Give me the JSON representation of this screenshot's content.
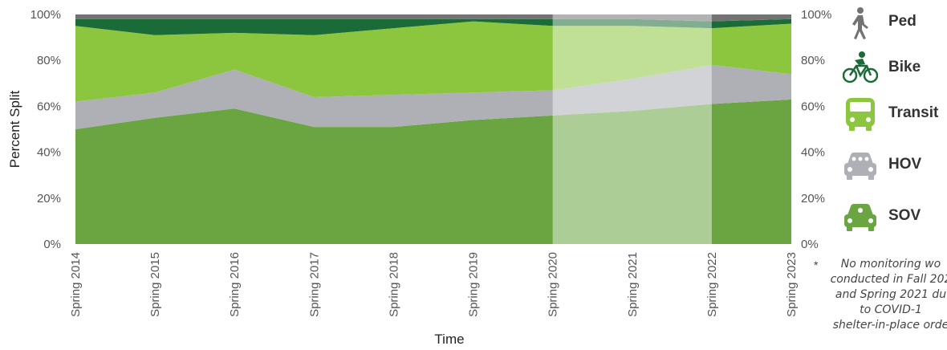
{
  "chart_data": {
    "type": "area",
    "stacked": true,
    "categories": [
      "Spring 2014",
      "Spring 2015",
      "Spring 2016",
      "Spring 2017",
      "Spring 2018",
      "Spring 2019",
      "Spring 2020",
      "Spring 2021",
      "Spring 2022",
      "Spring 2023"
    ],
    "series": [
      {
        "name": "SOV",
        "color": "#6aa542",
        "values": [
          50,
          55,
          59,
          51,
          51,
          54,
          56,
          58,
          61,
          63
        ]
      },
      {
        "name": "HOV",
        "color": "#aeb0b5",
        "values": [
          12,
          11,
          17,
          13,
          14,
          12,
          11,
          14,
          17,
          11
        ]
      },
      {
        "name": "Transit",
        "color": "#8cc63f",
        "values": [
          33,
          25,
          16,
          27,
          29,
          31,
          28,
          23,
          16,
          22
        ]
      },
      {
        "name": "Bike",
        "color": "#1b6b38",
        "values": [
          3,
          7,
          6,
          7,
          4,
          1,
          3,
          3,
          3,
          2
        ]
      },
      {
        "name": "Ped",
        "color": "#737373",
        "values": [
          2,
          2,
          2,
          2,
          2,
          2,
          2,
          2,
          3,
          2
        ]
      }
    ],
    "xlabel": "Time",
    "ylabel": "Percent Split",
    "ylim": [
      0,
      100
    ],
    "yticks": [
      "0%",
      "20%",
      "40%",
      "60%",
      "80%",
      "100%"
    ],
    "shaded_range": [
      "Spring 2020",
      "Spring 2022"
    ],
    "legend_position": "right",
    "grid": false,
    "note": {
      "star": "*",
      "lines": [
        "No monitoring wo",
        "conducted in Fall 202",
        "and Spring 2021 du",
        "to COVID-1",
        "shelter-in-place orde"
      ]
    }
  },
  "legend": [
    {
      "label": "Ped",
      "icon": "pedestrian-icon",
      "color": "#737373"
    },
    {
      "label": "Bike",
      "icon": "bicycle-icon",
      "color": "#1b6b38"
    },
    {
      "label": "Transit",
      "icon": "bus-icon",
      "color": "#8cc63f"
    },
    {
      "label": "HOV",
      "icon": "carpool-icon",
      "color": "#aeb0b5"
    },
    {
      "label": "SOV",
      "icon": "car-icon",
      "color": "#6aa542"
    }
  ]
}
